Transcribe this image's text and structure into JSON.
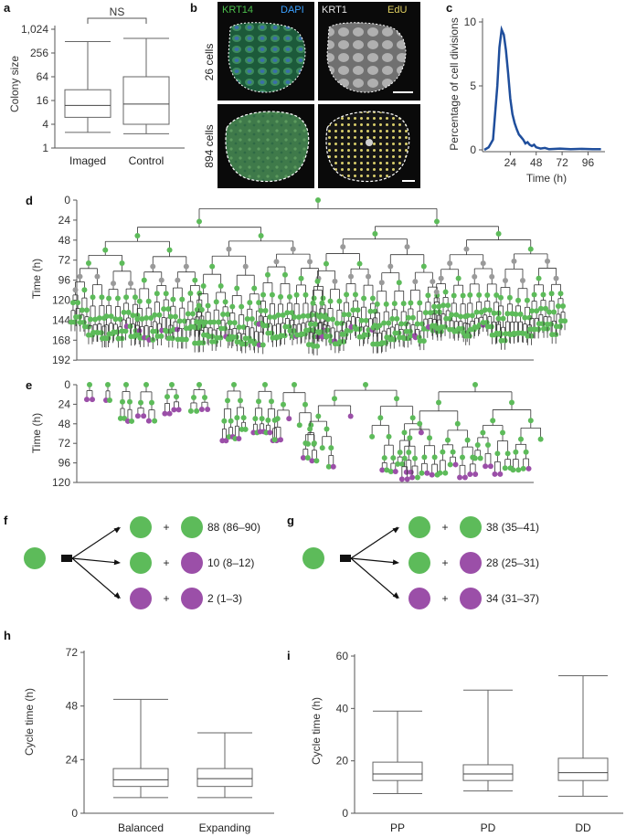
{
  "panels": {
    "a": {
      "letter": "a",
      "ylabel": "Colony size",
      "yticks": [
        "1,024",
        "256",
        "64",
        "16",
        "4",
        "1"
      ],
      "significance": "NS",
      "categories": [
        "Imaged",
        "Control"
      ]
    },
    "b": {
      "letter": "b",
      "tl_left": "KRT14",
      "tl_right": "DAPI",
      "tr_left": "KRT1",
      "tr_right": "EdU",
      "row1_label": "26 cells",
      "row2_label": "894 cells"
    },
    "c": {
      "letter": "c",
      "ylabel": "Percentage of cell divisions",
      "xlabel": "Time (h)",
      "yticks": [
        "10",
        "5",
        "0"
      ],
      "xticks": [
        "24",
        "48",
        "72",
        "96"
      ]
    },
    "d": {
      "letter": "d",
      "ylabel": "Time (h)",
      "yticks": [
        "0",
        "24",
        "48",
        "72",
        "96",
        "120",
        "144",
        "168",
        "192"
      ]
    },
    "e": {
      "letter": "e",
      "ylabel": "Time (h)",
      "yticks": [
        "0",
        "24",
        "48",
        "72",
        "96",
        "120"
      ]
    },
    "f": {
      "letter": "f",
      "plus": "+",
      "outcomes": [
        "88 (86–90)",
        "10 (8–12)",
        "2 (1–3)"
      ]
    },
    "g": {
      "letter": "g",
      "plus": "+",
      "outcomes": [
        "38 (35–41)",
        "28 (25–31)",
        "34 (31–37)"
      ]
    },
    "h": {
      "letter": "h",
      "ylabel": "Cycle time (h)",
      "yticks": [
        "72",
        "48",
        "24",
        "0"
      ],
      "categories": [
        "Balanced",
        "Expanding"
      ]
    },
    "i": {
      "letter": "i",
      "ylabel": "Cycle time (h)",
      "yticks": [
        "60",
        "40",
        "20",
        "0"
      ],
      "categories": [
        "PP",
        "PD",
        "DD"
      ]
    }
  },
  "colors": {
    "progenitor": "#5dbb5a",
    "differentiated": "#9b4fa8",
    "grey_cell": "#9a9a9a",
    "line_blue": "#1f4e9c",
    "krt14": "#4bbf4b",
    "dapi": "#3aa0ff",
    "edu": "#e0d060"
  },
  "chart_data": [
    {
      "type": "box",
      "panel": "a",
      "scale": "log2",
      "ylabel": "Colony size",
      "ylim": [
        1,
        1024
      ],
      "categories": [
        "Imaged",
        "Control"
      ],
      "boxes": [
        {
          "min": 2.5,
          "q1": 6,
          "median": 12,
          "q3": 30,
          "max": 500
        },
        {
          "min": 2.3,
          "q1": 4,
          "median": 13,
          "q3": 64,
          "max": 600
        }
      ]
    },
    {
      "type": "line",
      "panel": "c",
      "xlabel": "Time (h)",
      "ylabel": "Percentage of cell divisions",
      "xlim": [
        0,
        110
      ],
      "ylim": [
        0,
        10
      ],
      "x": [
        0,
        4,
        8,
        12,
        14,
        16,
        18,
        20,
        22,
        24,
        26,
        28,
        30,
        32,
        34,
        36,
        38,
        40,
        42,
        44,
        46,
        48,
        52,
        56,
        60,
        70,
        80,
        90,
        100,
        108
      ],
      "y": [
        0,
        0.2,
        0.8,
        5.0,
        8.0,
        9.4,
        9.0,
        7.8,
        6.0,
        4.0,
        2.8,
        2.1,
        1.6,
        1.2,
        1.0,
        0.8,
        0.5,
        0.6,
        0.4,
        0.3,
        0.4,
        0.2,
        0.1,
        0.15,
        0.05,
        0.1,
        0.05,
        0.08,
        0.05,
        0.05
      ]
    },
    {
      "type": "box",
      "panel": "h",
      "ylabel": "Cycle time (h)",
      "ylim": [
        0,
        72
      ],
      "categories": [
        "Balanced",
        "Expanding"
      ],
      "boxes": [
        {
          "min": 7,
          "q1": 12,
          "median": 15,
          "q3": 20,
          "max": 51
        },
        {
          "min": 7,
          "q1": 12,
          "median": 15.5,
          "q3": 20,
          "max": 36
        }
      ]
    },
    {
      "type": "box",
      "panel": "i",
      "ylabel": "Cycle time (h)",
      "ylim": [
        0,
        60
      ],
      "categories": [
        "PP",
        "PD",
        "DD"
      ],
      "boxes": [
        {
          "min": 7.5,
          "q1": 12.5,
          "median": 15,
          "q3": 19.5,
          "max": 39
        },
        {
          "min": 8.5,
          "q1": 12.5,
          "median": 15,
          "q3": 18.5,
          "max": 47
        },
        {
          "min": 6.5,
          "q1": 12.5,
          "median": 15.5,
          "q3": 21,
          "max": 52.5
        }
      ]
    }
  ]
}
